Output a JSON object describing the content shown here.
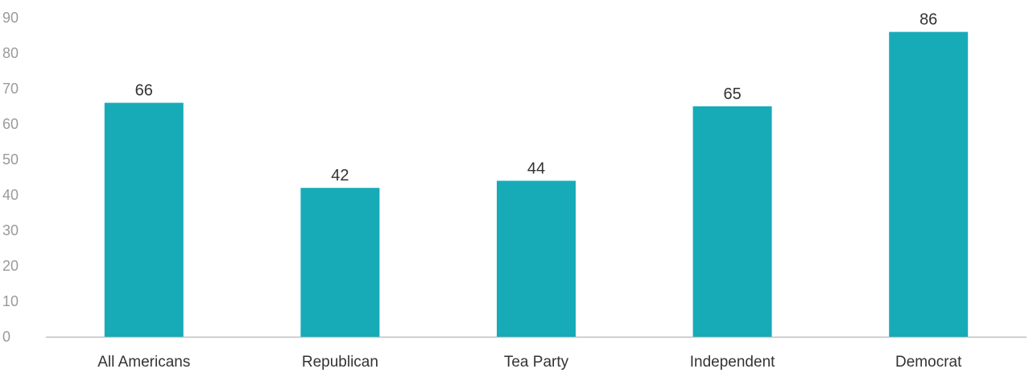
{
  "chart_data": {
    "type": "bar",
    "categories": [
      "All Americans",
      "Republican",
      "Tea Party",
      "Independent",
      "Democrat"
    ],
    "values": [
      66,
      42,
      44,
      65,
      86
    ],
    "data_labels": [
      "66",
      "42",
      "44",
      "65",
      "86"
    ],
    "title": "",
    "xlabel": "",
    "ylabel": "",
    "ylim": [
      0,
      90
    ],
    "yticks": [
      0,
      10,
      20,
      30,
      40,
      50,
      60,
      70,
      80,
      90
    ],
    "grid": false,
    "bar_color": "#17abb8",
    "axis_color": "#bfbfbf"
  }
}
